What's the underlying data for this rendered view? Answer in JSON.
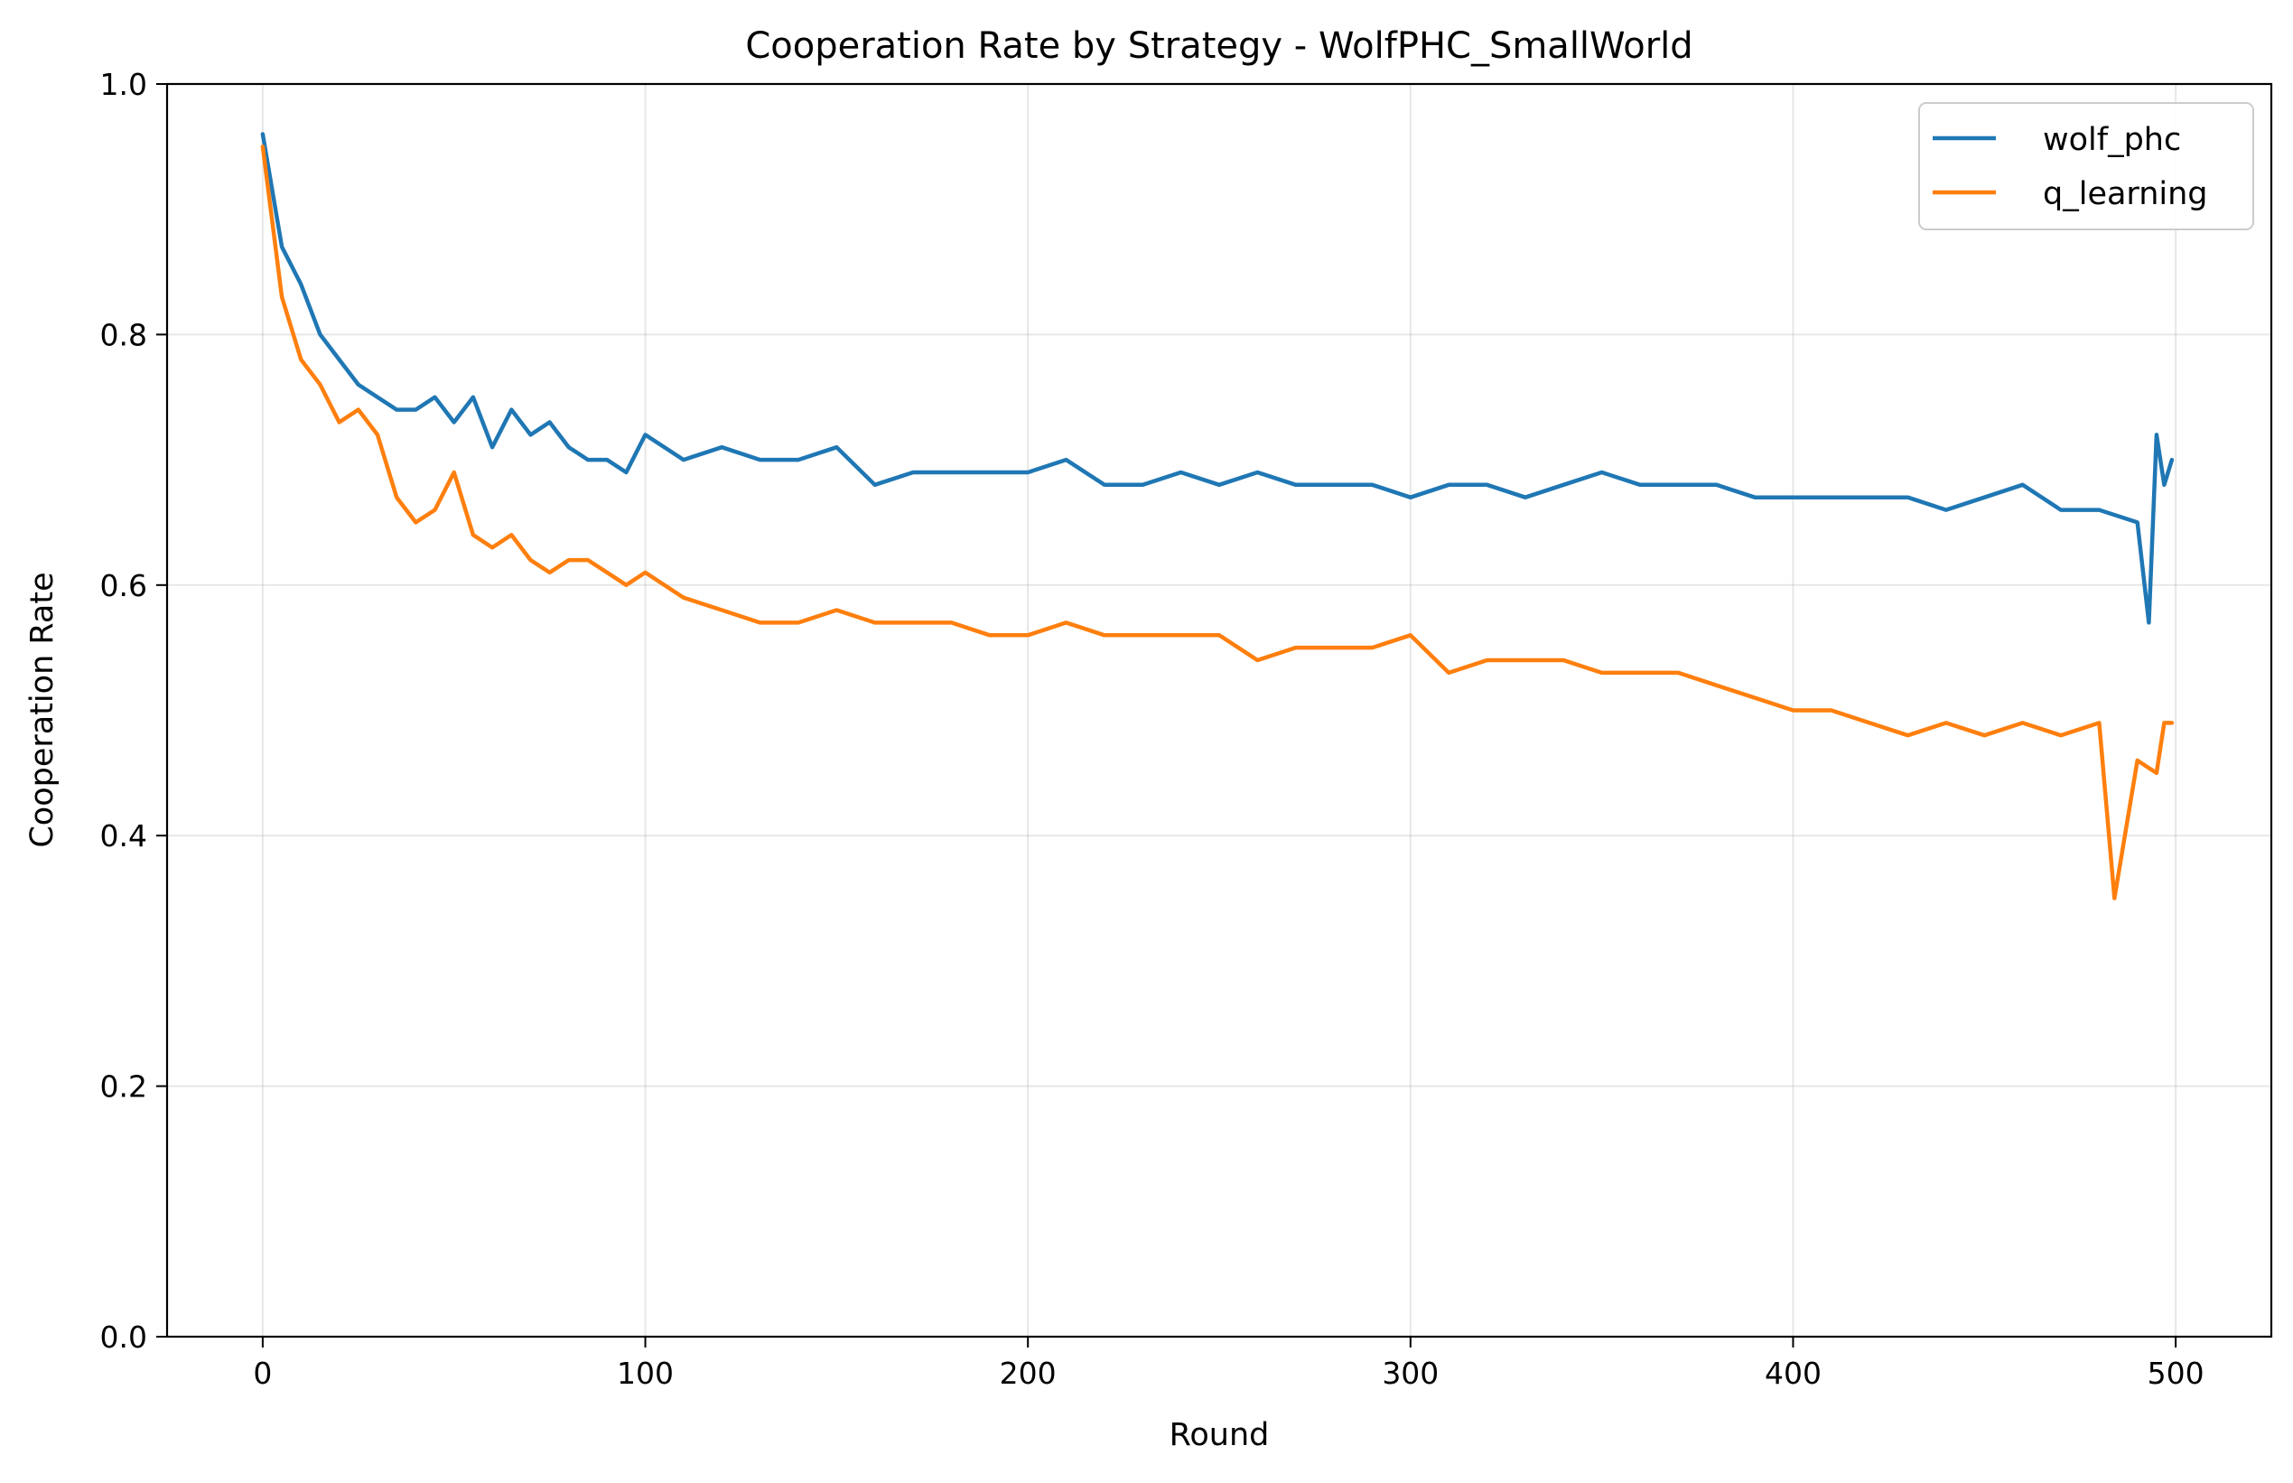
{
  "chart_data": {
    "type": "line",
    "title": "Cooperation Rate by Strategy - WolfPHC_SmallWorld",
    "xlabel": "Round",
    "ylabel": "Cooperation Rate",
    "xlim": [
      -25,
      525
    ],
    "ylim": [
      0.0,
      1.0
    ],
    "x_ticks": [
      0,
      100,
      200,
      300,
      400,
      500
    ],
    "x_tick_labels": [
      "0",
      "100",
      "200",
      "300",
      "400",
      "500"
    ],
    "y_ticks": [
      0.0,
      0.2,
      0.4,
      0.6,
      0.8,
      1.0
    ],
    "y_tick_labels": [
      "0.0",
      "0.2",
      "0.4",
      "0.6",
      "0.8",
      "1.0"
    ],
    "grid": true,
    "legend_position": "top-right",
    "series": [
      {
        "name": "wolf_phc",
        "color": "#1f77b4",
        "x": [
          0,
          5,
          10,
          15,
          20,
          25,
          30,
          35,
          40,
          45,
          50,
          55,
          60,
          65,
          70,
          75,
          80,
          85,
          90,
          95,
          100,
          110,
          120,
          130,
          140,
          150,
          160,
          170,
          180,
          190,
          200,
          210,
          220,
          230,
          240,
          250,
          260,
          270,
          280,
          290,
          300,
          310,
          320,
          330,
          340,
          350,
          360,
          370,
          380,
          390,
          400,
          410,
          420,
          430,
          440,
          450,
          460,
          470,
          480,
          490,
          493,
          495,
          497,
          499
        ],
        "y": [
          0.96,
          0.87,
          0.84,
          0.8,
          0.78,
          0.76,
          0.75,
          0.74,
          0.74,
          0.75,
          0.73,
          0.75,
          0.71,
          0.74,
          0.72,
          0.73,
          0.71,
          0.7,
          0.7,
          0.69,
          0.72,
          0.7,
          0.71,
          0.7,
          0.7,
          0.71,
          0.68,
          0.69,
          0.69,
          0.69,
          0.69,
          0.7,
          0.68,
          0.68,
          0.69,
          0.68,
          0.69,
          0.68,
          0.68,
          0.68,
          0.67,
          0.68,
          0.68,
          0.67,
          0.68,
          0.69,
          0.68,
          0.68,
          0.68,
          0.67,
          0.67,
          0.67,
          0.67,
          0.67,
          0.66,
          0.67,
          0.68,
          0.66,
          0.66,
          0.65,
          0.57,
          0.72,
          0.68,
          0.7
        ]
      },
      {
        "name": "q_learning",
        "color": "#ff7f0e",
        "x": [
          0,
          5,
          10,
          15,
          20,
          25,
          30,
          35,
          40,
          45,
          50,
          55,
          60,
          65,
          70,
          75,
          80,
          85,
          90,
          95,
          100,
          110,
          120,
          130,
          140,
          150,
          160,
          170,
          180,
          190,
          200,
          210,
          220,
          230,
          240,
          250,
          260,
          270,
          280,
          290,
          300,
          310,
          320,
          330,
          340,
          350,
          360,
          370,
          380,
          390,
          400,
          410,
          420,
          430,
          440,
          450,
          460,
          470,
          480,
          484,
          490,
          495,
          497,
          499
        ],
        "y": [
          0.95,
          0.83,
          0.78,
          0.76,
          0.73,
          0.74,
          0.72,
          0.67,
          0.65,
          0.66,
          0.69,
          0.64,
          0.63,
          0.64,
          0.62,
          0.61,
          0.62,
          0.62,
          0.61,
          0.6,
          0.61,
          0.59,
          0.58,
          0.57,
          0.57,
          0.58,
          0.57,
          0.57,
          0.57,
          0.56,
          0.56,
          0.57,
          0.56,
          0.56,
          0.56,
          0.56,
          0.54,
          0.55,
          0.55,
          0.55,
          0.56,
          0.53,
          0.54,
          0.54,
          0.54,
          0.53,
          0.53,
          0.53,
          0.52,
          0.51,
          0.5,
          0.5,
          0.49,
          0.48,
          0.49,
          0.48,
          0.49,
          0.48,
          0.49,
          0.35,
          0.46,
          0.45,
          0.49,
          0.49
        ]
      }
    ]
  }
}
